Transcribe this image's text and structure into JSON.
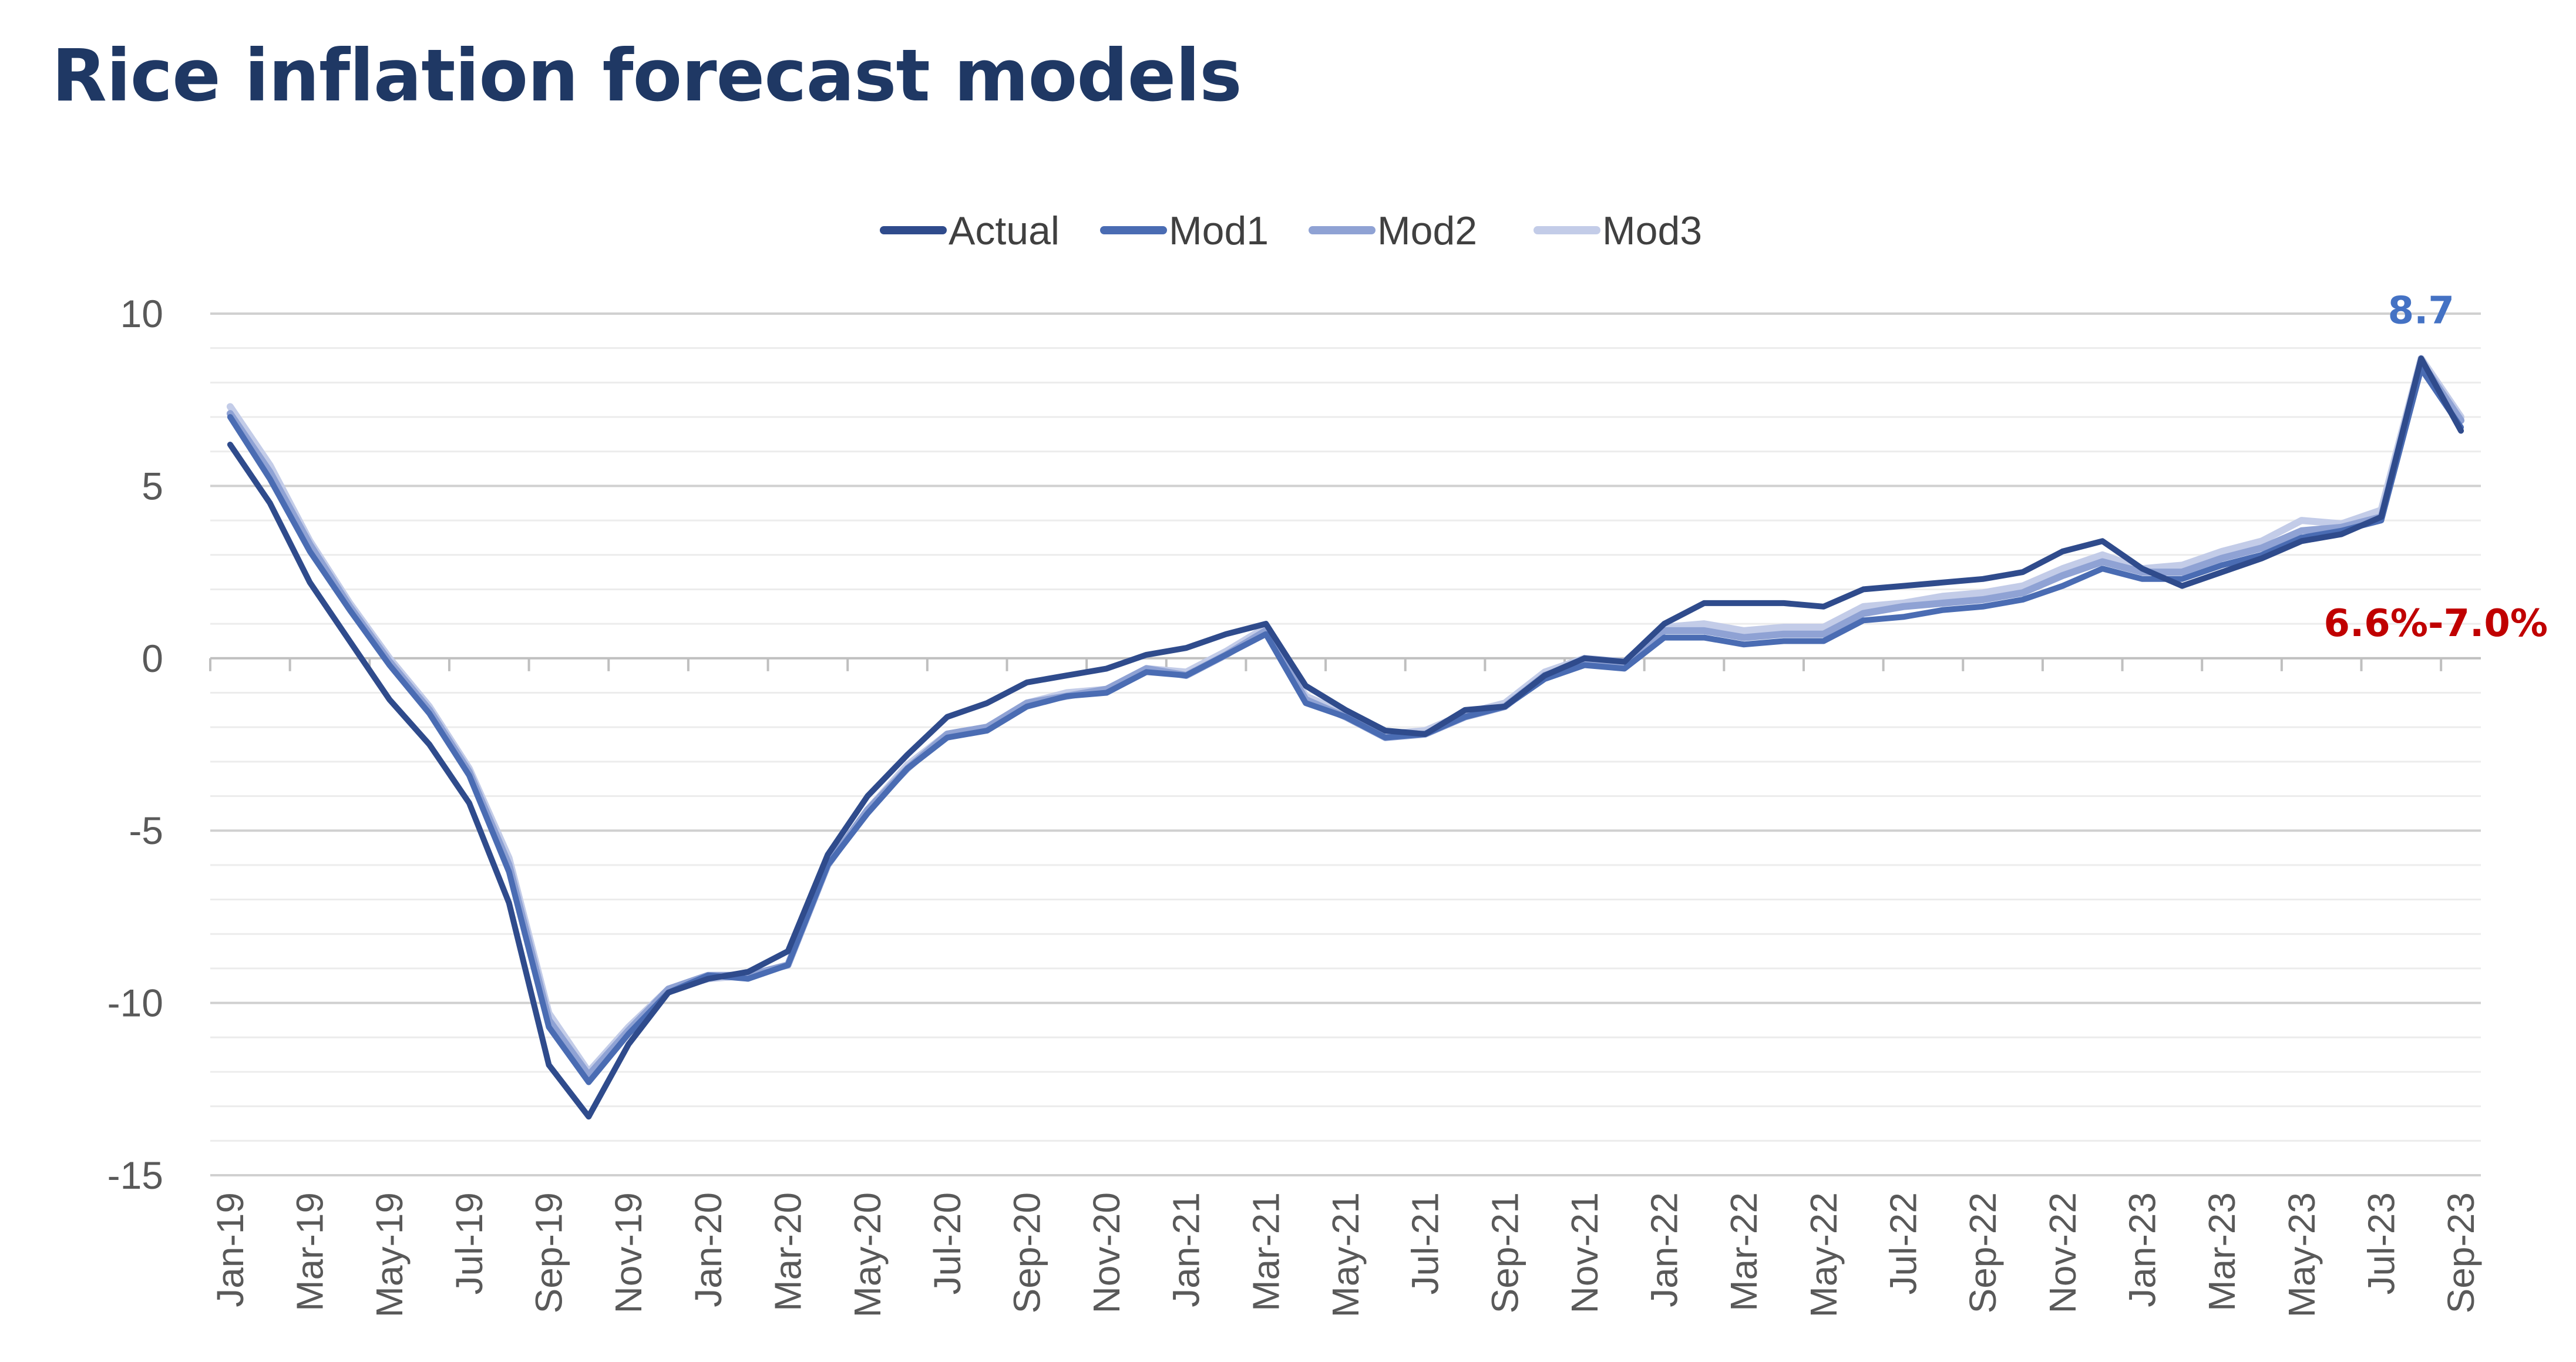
{
  "chart_data": {
    "type": "line",
    "title": "Rice inflation forecast models",
    "ylim": [
      -15,
      10
    ],
    "y_ticks": [
      10,
      5,
      0,
      -5,
      -10,
      -15
    ],
    "y_minor_step": 1,
    "grid": true,
    "legend_position": "top",
    "x": [
      "Jan-19",
      "Feb-19",
      "Mar-19",
      "Apr-19",
      "May-19",
      "Jun-19",
      "Jul-19",
      "Aug-19",
      "Sep-19",
      "Oct-19",
      "Nov-19",
      "Dec-19",
      "Jan-20",
      "Feb-20",
      "Mar-20",
      "Apr-20",
      "May-20",
      "Jun-20",
      "Jul-20",
      "Aug-20",
      "Sep-20",
      "Oct-20",
      "Nov-20",
      "Dec-20",
      "Jan-21",
      "Feb-21",
      "Mar-21",
      "Apr-21",
      "May-21",
      "Jun-21",
      "Jul-21",
      "Aug-21",
      "Sep-21",
      "Oct-21",
      "Nov-21",
      "Dec-21",
      "Jan-22",
      "Feb-22",
      "Mar-22",
      "Apr-22",
      "May-22",
      "Jun-22",
      "Jul-22",
      "Aug-22",
      "Sep-22",
      "Oct-22",
      "Nov-22",
      "Dec-22",
      "Jan-23",
      "Feb-23",
      "Mar-23",
      "Apr-23",
      "May-23",
      "Jun-23",
      "Jul-23",
      "Aug-23",
      "Sep-23"
    ],
    "x_tick_labels": [
      "Jan-19",
      "Mar-19",
      "May-19",
      "Jul-19",
      "Sep-19",
      "Nov-19",
      "Jan-20",
      "Mar-20",
      "May-20",
      "Jul-20",
      "Sep-20",
      "Nov-20",
      "Jan-21",
      "Mar-21",
      "May-21",
      "Jul-21",
      "Sep-21",
      "Nov-21",
      "Jan-22",
      "Mar-22",
      "May-22",
      "Jul-22",
      "Sep-22",
      "Nov-22",
      "Jan-23",
      "Mar-23",
      "May-23",
      "Jul-23",
      "Sep-23"
    ],
    "series": [
      {
        "name": "Actual",
        "color": "#2f4b8c",
        "values": [
          6.2,
          4.5,
          2.2,
          0.5,
          -1.2,
          -2.5,
          -4.2,
          -7.1,
          -11.8,
          -13.3,
          -11.2,
          -9.7,
          -9.3,
          -9.1,
          -8.5,
          -5.7,
          -4.0,
          -2.8,
          -1.7,
          -1.3,
          -0.7,
          -0.5,
          -0.3,
          0.1,
          0.3,
          0.7,
          1.0,
          -0.8,
          -1.5,
          -2.1,
          -2.2,
          -1.5,
          -1.4,
          -0.5,
          0.0,
          -0.1,
          1.0,
          1.6,
          1.6,
          1.6,
          1.5,
          2.0,
          2.1,
          2.2,
          2.3,
          2.5,
          3.1,
          3.4,
          2.6,
          2.1,
          2.5,
          2.9,
          3.4,
          3.6,
          4.1,
          8.7,
          6.6
        ]
      },
      {
        "name": "Mod1",
        "color": "#4a6cb3",
        "values": [
          7.0,
          5.2,
          3.1,
          1.4,
          -0.2,
          -1.6,
          -3.4,
          -6.2,
          -10.7,
          -12.3,
          -10.9,
          -9.7,
          -9.2,
          -9.3,
          -8.9,
          -6.0,
          -4.5,
          -3.2,
          -2.3,
          -2.1,
          -1.4,
          -1.1,
          -1.0,
          -0.4,
          -0.5,
          0.1,
          0.7,
          -1.3,
          -1.7,
          -2.3,
          -2.2,
          -1.7,
          -1.4,
          -0.6,
          -0.2,
          -0.3,
          0.6,
          0.6,
          0.4,
          0.5,
          0.5,
          1.1,
          1.2,
          1.4,
          1.5,
          1.7,
          2.1,
          2.6,
          2.3,
          2.3,
          2.7,
          3.0,
          3.5,
          3.7,
          4.0,
          8.4,
          6.7
        ]
      },
      {
        "name": "Mod2",
        "color": "#8fa2d4",
        "values": [
          7.1,
          5.4,
          3.3,
          1.5,
          -0.1,
          -1.5,
          -3.3,
          -6.0,
          -10.5,
          -12.1,
          -10.8,
          -9.6,
          -9.2,
          -9.2,
          -8.9,
          -6.0,
          -4.4,
          -3.2,
          -2.2,
          -2.0,
          -1.3,
          -1.1,
          -0.9,
          -0.3,
          -0.5,
          0.1,
          0.8,
          -1.2,
          -1.7,
          -2.3,
          -2.2,
          -1.7,
          -1.4,
          -0.5,
          -0.1,
          -0.2,
          0.8,
          0.8,
          0.6,
          0.7,
          0.7,
          1.3,
          1.5,
          1.6,
          1.7,
          1.9,
          2.4,
          2.8,
          2.5,
          2.5,
          2.9,
          3.2,
          3.7,
          3.8,
          4.1,
          8.6,
          6.9
        ]
      },
      {
        "name": "Mod3",
        "color": "#c3cce8",
        "values": [
          7.3,
          5.6,
          3.4,
          1.6,
          0.0,
          -1.4,
          -3.2,
          -5.8,
          -10.3,
          -12.0,
          -10.7,
          -9.6,
          -9.3,
          -9.2,
          -8.9,
          -6.0,
          -4.4,
          -3.1,
          -2.2,
          -2.0,
          -1.3,
          -1.0,
          -0.9,
          -0.3,
          -0.4,
          0.2,
          0.9,
          -1.1,
          -1.6,
          -2.2,
          -2.1,
          -1.6,
          -1.3,
          -0.4,
          0.0,
          -0.1,
          0.9,
          1.0,
          0.8,
          0.9,
          0.9,
          1.5,
          1.6,
          1.8,
          1.9,
          2.1,
          2.6,
          3.0,
          2.6,
          2.7,
          3.1,
          3.4,
          4.0,
          3.9,
          4.3,
          8.7,
          7.0
        ]
      }
    ],
    "annotations": [
      {
        "text": "8.7",
        "x": "Aug-23",
        "y": 8.7,
        "color": "#4472c4",
        "position": "above"
      },
      {
        "text": "6.6%-7.0%",
        "x": "Sep-23",
        "y": 6.8,
        "color": "#c00000",
        "position": "below-left"
      }
    ]
  }
}
